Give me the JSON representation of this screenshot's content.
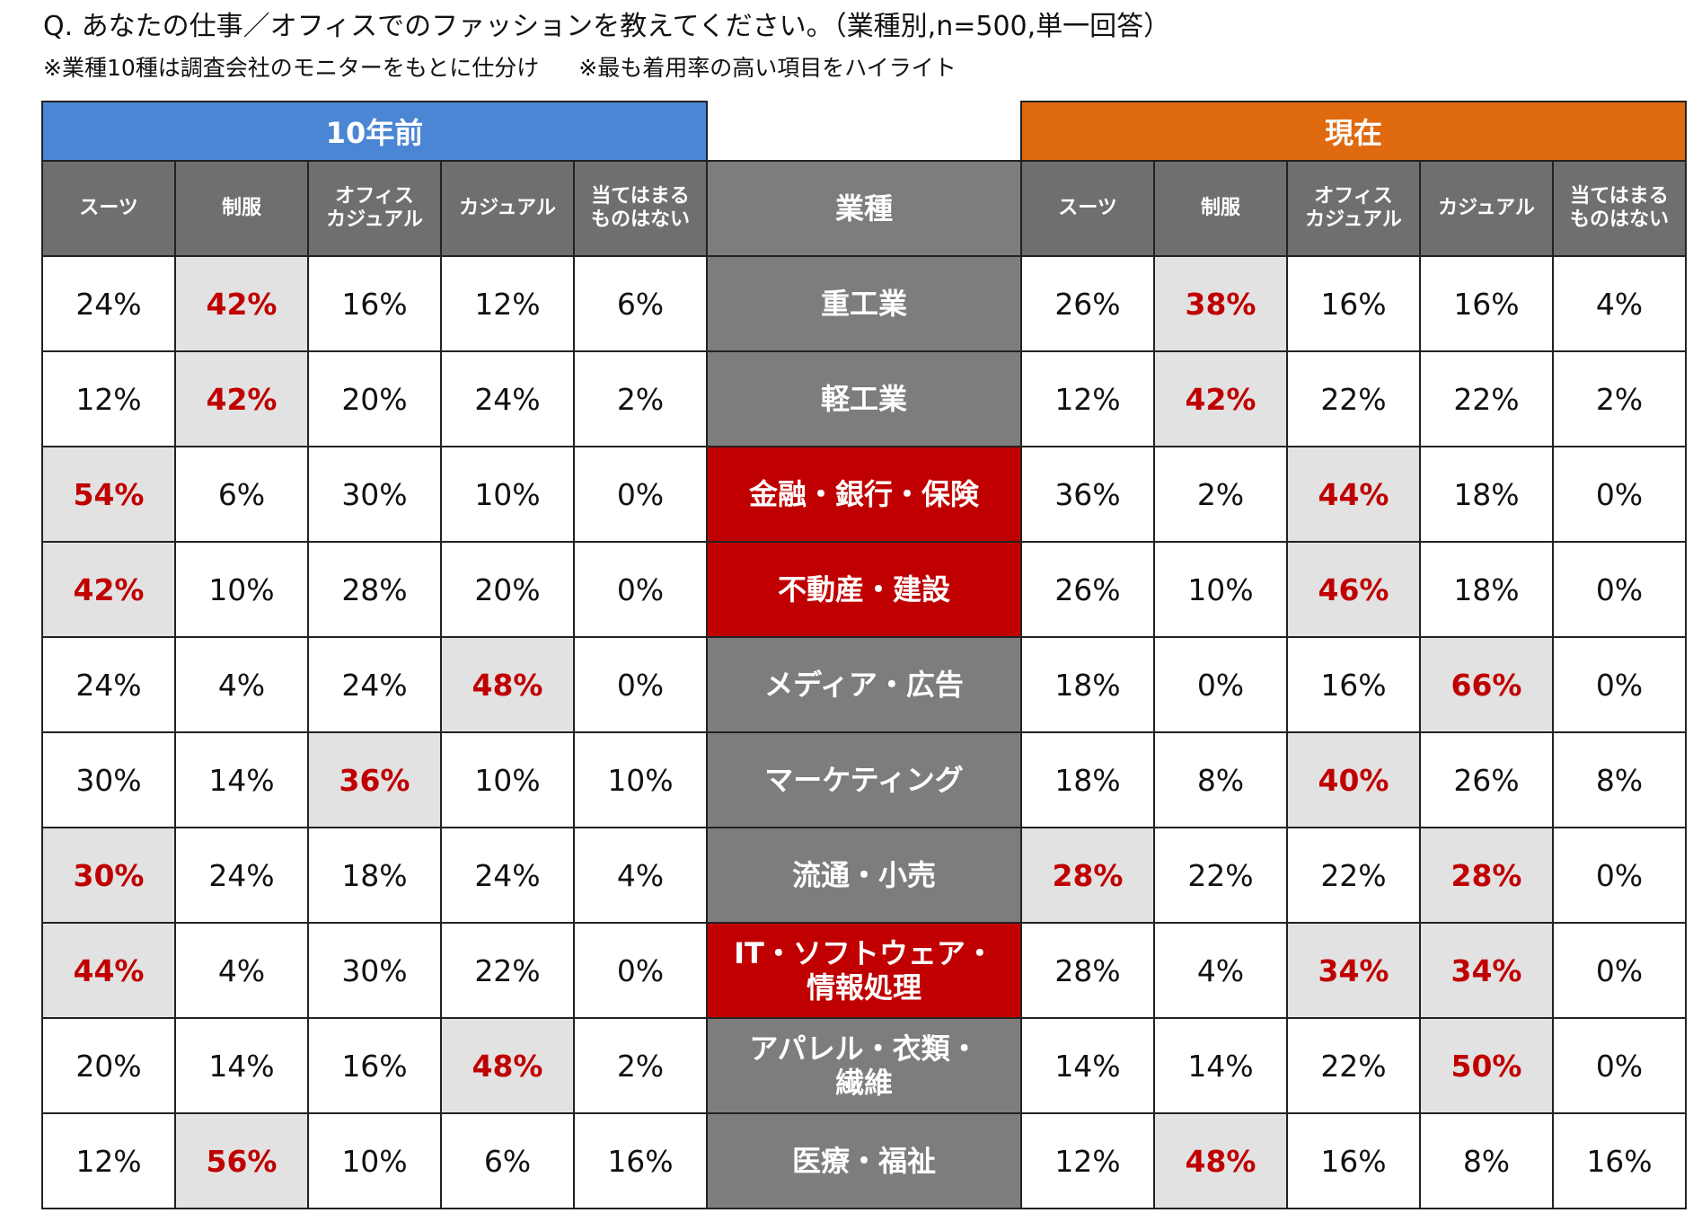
{
  "question": "Q. あなたの仕事／オフィスでのファッションを教えてください。（業種別,n=500,単一回答）",
  "notes": [
    "※業種10種は調査会社のモニターをもとに仕分け",
    "※最も着用率の高い項目をハイライト"
  ],
  "colors": {
    "before_band": "#4a86d4",
    "now_band": "#e06a0f",
    "header_bg": "#6f6f6f",
    "industry_bg": "#7d7d7d",
    "industry_changed_bg": "#c00000",
    "highlight_bg": "#e2e2e2",
    "highlight_text": "#c00000"
  },
  "chart_data": {
    "type": "table",
    "groups": [
      "10年前",
      "現在"
    ],
    "industry_header": "業種",
    "columns": [
      "スーツ",
      "制服",
      "オフィス\nカジュアル",
      "カジュアル",
      "当てはまる\nものはない"
    ],
    "rows": [
      {
        "industry": "重工業",
        "changed": false,
        "before": [
          "24%",
          "42%",
          "16%",
          "12%",
          "6%"
        ],
        "before_top": [
          1
        ],
        "now": [
          "26%",
          "38%",
          "16%",
          "16%",
          "4%"
        ],
        "now_top": [
          1
        ]
      },
      {
        "industry": "軽工業",
        "changed": false,
        "before": [
          "12%",
          "42%",
          "20%",
          "24%",
          "2%"
        ],
        "before_top": [
          1
        ],
        "now": [
          "12%",
          "42%",
          "22%",
          "22%",
          "2%"
        ],
        "now_top": [
          1
        ]
      },
      {
        "industry": "金融・銀行・保険",
        "changed": true,
        "before": [
          "54%",
          "6%",
          "30%",
          "10%",
          "0%"
        ],
        "before_top": [
          0
        ],
        "now": [
          "36%",
          "2%",
          "44%",
          "18%",
          "0%"
        ],
        "now_top": [
          2
        ]
      },
      {
        "industry": "不動産・建設",
        "changed": true,
        "before": [
          "42%",
          "10%",
          "28%",
          "20%",
          "0%"
        ],
        "before_top": [
          0
        ],
        "now": [
          "26%",
          "10%",
          "46%",
          "18%",
          "0%"
        ],
        "now_top": [
          2
        ]
      },
      {
        "industry": "メディア・広告",
        "changed": false,
        "before": [
          "24%",
          "4%",
          "24%",
          "48%",
          "0%"
        ],
        "before_top": [
          3
        ],
        "now": [
          "18%",
          "0%",
          "16%",
          "66%",
          "0%"
        ],
        "now_top": [
          3
        ]
      },
      {
        "industry": "マーケティング",
        "changed": false,
        "before": [
          "30%",
          "14%",
          "36%",
          "10%",
          "10%"
        ],
        "before_top": [
          2
        ],
        "now": [
          "18%",
          "8%",
          "40%",
          "26%",
          "8%"
        ],
        "now_top": [
          2
        ]
      },
      {
        "industry": "流通・小売",
        "changed": false,
        "before": [
          "30%",
          "24%",
          "18%",
          "24%",
          "4%"
        ],
        "before_top": [
          0
        ],
        "now": [
          "28%",
          "22%",
          "22%",
          "28%",
          "0%"
        ],
        "now_top": [
          0,
          3
        ]
      },
      {
        "industry": "IT・ソフトウェア・\n情報処理",
        "changed": true,
        "before": [
          "44%",
          "4%",
          "30%",
          "22%",
          "0%"
        ],
        "before_top": [
          0
        ],
        "now": [
          "28%",
          "4%",
          "34%",
          "34%",
          "0%"
        ],
        "now_top": [
          2,
          3
        ]
      },
      {
        "industry": "アパレル・衣類・\n繊維",
        "changed": false,
        "before": [
          "20%",
          "14%",
          "16%",
          "48%",
          "2%"
        ],
        "before_top": [
          3
        ],
        "now": [
          "14%",
          "14%",
          "22%",
          "50%",
          "0%"
        ],
        "now_top": [
          3
        ]
      },
      {
        "industry": "医療・福祉",
        "changed": false,
        "before": [
          "12%",
          "56%",
          "10%",
          "6%",
          "16%"
        ],
        "before_top": [
          1
        ],
        "now": [
          "12%",
          "48%",
          "16%",
          "8%",
          "16%"
        ],
        "now_top": [
          1
        ]
      }
    ]
  }
}
